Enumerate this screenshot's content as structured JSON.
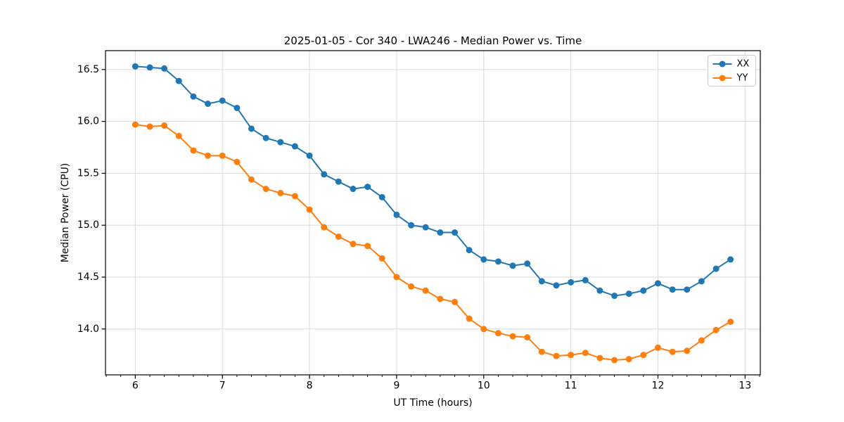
{
  "chart_data": {
    "type": "line",
    "title": "2025-01-05 - Cor 340 - LWA246 - Median Power vs. Time",
    "xlabel": "UT Time (hours)",
    "ylabel": "Median Power (CPU)",
    "xlim": [
      5.658,
      13.175
    ],
    "ylim": [
      13.558,
      16.682
    ],
    "xticks": [
      6,
      7,
      8,
      9,
      10,
      11,
      12,
      13
    ],
    "yticks": [
      14.0,
      14.5,
      15.0,
      15.5,
      16.0,
      16.5
    ],
    "x_minor_ticks_per_major": 6,
    "grid": true,
    "legend": {
      "position": "upper right",
      "entries": [
        "XX",
        "YY"
      ]
    },
    "x": [
      6.0,
      6.167,
      6.333,
      6.5,
      6.667,
      6.833,
      7.0,
      7.167,
      7.333,
      7.5,
      7.667,
      7.833,
      8.0,
      8.167,
      8.333,
      8.5,
      8.667,
      8.833,
      9.0,
      9.167,
      9.333,
      9.5,
      9.667,
      9.833,
      10.0,
      10.167,
      10.333,
      10.5,
      10.667,
      10.833,
      11.0,
      11.167,
      11.333,
      11.5,
      11.667,
      11.833,
      12.0,
      12.167,
      12.333,
      12.5,
      12.667,
      12.833
    ],
    "series": [
      {
        "name": "XX",
        "color": "#1f77b4",
        "marker": "circle",
        "values": [
          16.53,
          16.52,
          16.51,
          16.39,
          16.24,
          16.17,
          16.2,
          16.13,
          15.93,
          15.84,
          15.8,
          15.76,
          15.67,
          15.49,
          15.42,
          15.35,
          15.37,
          15.27,
          15.1,
          15.0,
          14.98,
          14.93,
          14.93,
          14.76,
          14.67,
          14.65,
          14.61,
          14.63,
          14.46,
          14.42,
          14.45,
          14.47,
          14.37,
          14.32,
          14.34,
          14.37,
          14.44,
          14.38,
          14.38,
          14.46,
          14.58,
          14.67
        ]
      },
      {
        "name": "YY",
        "color": "#ff7f0e",
        "marker": "circle",
        "values": [
          15.97,
          15.95,
          15.96,
          15.86,
          15.72,
          15.67,
          15.67,
          15.61,
          15.44,
          15.35,
          15.31,
          15.28,
          15.15,
          14.98,
          14.89,
          14.82,
          14.8,
          14.68,
          14.5,
          14.41,
          14.37,
          14.29,
          14.26,
          14.1,
          14.0,
          13.96,
          13.93,
          13.92,
          13.78,
          13.74,
          13.75,
          13.77,
          13.72,
          13.7,
          13.71,
          13.75,
          13.82,
          13.78,
          13.79,
          13.89,
          13.99,
          14.07
        ]
      }
    ],
    "style": {
      "grid_color": "#d9d9d9",
      "spine_color": "#000000",
      "tick_color": "#000000",
      "background": "#ffffff",
      "legend_border": "#cccccc"
    }
  }
}
